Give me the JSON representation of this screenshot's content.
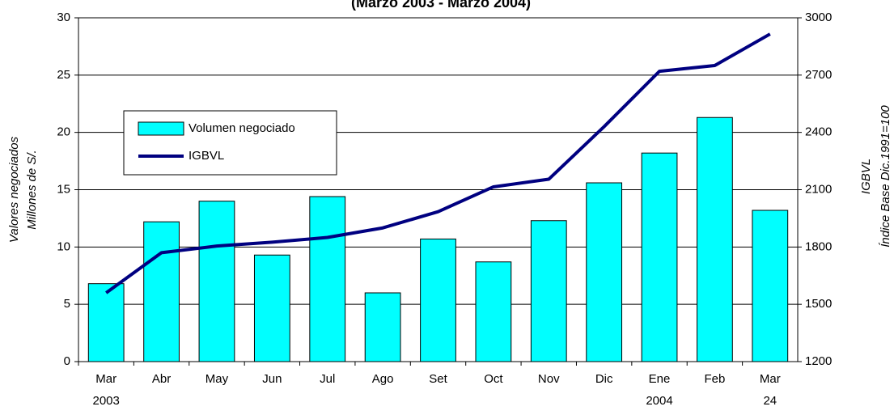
{
  "chart_data": {
    "type": "bar-line",
    "title": "(Marzo 2003 - Marzo 2004)",
    "categories": [
      "Mar",
      "Abr",
      "May",
      "Jun",
      "Jul",
      "Ago",
      "Set",
      "Oct",
      "Nov",
      "Dic",
      "Ene",
      "Feb",
      "Mar"
    ],
    "category_years": [
      "2003",
      null,
      null,
      null,
      null,
      null,
      null,
      null,
      null,
      null,
      "2004",
      null,
      "24"
    ],
    "series": [
      {
        "name": "Volumen negociado",
        "type": "bar",
        "color": "#00ffff",
        "axis": "y",
        "values": [
          6.8,
          12.2,
          14.0,
          9.3,
          14.4,
          6.0,
          10.7,
          8.7,
          12.3,
          15.6,
          18.2,
          21.3,
          13.2
        ]
      },
      {
        "name": "IGBVL",
        "type": "line",
        "color": "#000080",
        "axis": "y2",
        "values": [
          1560,
          1770,
          1805,
          1825,
          1850,
          1900,
          1985,
          2115,
          2155,
          2430,
          2720,
          2750,
          2915
        ]
      }
    ],
    "ylabel": [
      "Valores negociados",
      "Millones de S/."
    ],
    "y2label": [
      "IGBVL",
      "Índice Base Dic.1991=100"
    ],
    "ylim": [
      0,
      30
    ],
    "yticks": [
      0,
      5,
      10,
      15,
      20,
      25,
      30
    ],
    "y2lim": [
      1200,
      3000
    ],
    "y2ticks": [
      1200,
      1500,
      1800,
      2100,
      2400,
      2700,
      3000
    ],
    "grid": true,
    "legend": "upper-left"
  }
}
